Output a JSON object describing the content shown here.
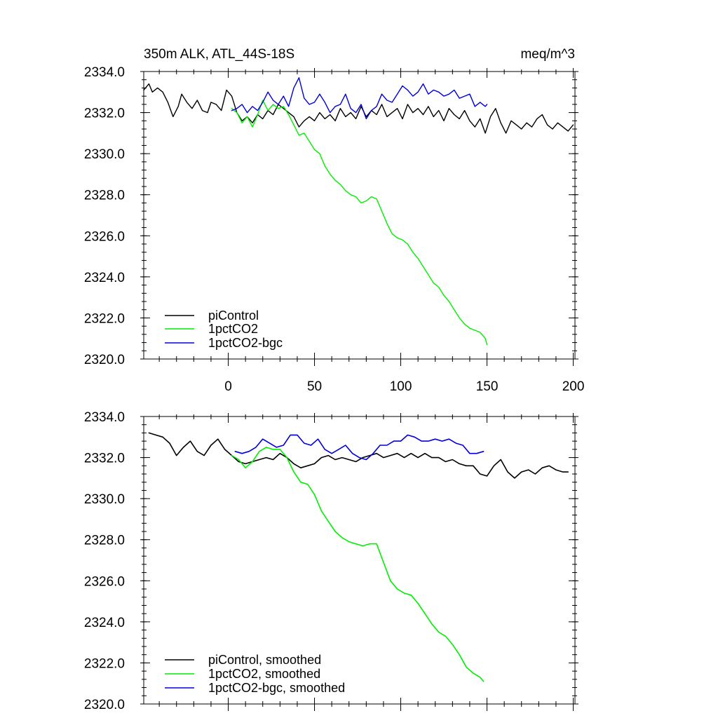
{
  "chart_data": [
    {
      "type": "line",
      "title_left": "350m ALK, ATL_44S-18S",
      "title_right": "meq/m^3",
      "xlabel": "",
      "ylabel": "",
      "xlim": [
        -49,
        201
      ],
      "ylim": [
        2320,
        2334
      ],
      "x_ticks": [
        0,
        50,
        100,
        150,
        200
      ],
      "x_tick_labels": [
        "0",
        "50",
        "100",
        "150",
        "200"
      ],
      "y_ticks": [
        2320,
        2322,
        2324,
        2326,
        2328,
        2330,
        2332,
        2334
      ],
      "y_tick_labels": [
        "2320.0",
        "2322.0",
        "2324.0",
        "2326.0",
        "2328.0",
        "2330.0",
        "2332.0",
        "2334.0"
      ],
      "grid": false,
      "legend_placement": "bottom-left",
      "series": [
        {
          "name": "piControl",
          "color": "#000000",
          "x": [
            -49,
            -46,
            -44,
            -41,
            -38,
            -35,
            -32,
            -29,
            -27,
            -24,
            -21,
            -18,
            -15,
            -12,
            -10,
            -7,
            -4,
            -1,
            2,
            5,
            8,
            11,
            14,
            17,
            20,
            23,
            26,
            29,
            32,
            35,
            38,
            41,
            44,
            47,
            50,
            53,
            56,
            59,
            62,
            65,
            68,
            71,
            74,
            77,
            80,
            83,
            86,
            89,
            92,
            95,
            98,
            101,
            104,
            107,
            110,
            113,
            116,
            119,
            122,
            125,
            128,
            131,
            134,
            137,
            140,
            143,
            146,
            149,
            152,
            155,
            158,
            161,
            164,
            167,
            170,
            173,
            176,
            179,
            182,
            185,
            188,
            191,
            194,
            197,
            200
          ],
          "y": [
            2333.1,
            2333.4,
            2333.0,
            2333.2,
            2333.0,
            2332.5,
            2331.8,
            2332.3,
            2332.9,
            2332.5,
            2332.2,
            2332.6,
            2332.1,
            2332.0,
            2332.5,
            2332.4,
            2332.1,
            2333.1,
            2332.8,
            2332.0,
            2331.6,
            2331.8,
            2331.5,
            2331.9,
            2331.7,
            2332.1,
            2331.9,
            2332.4,
            2332.2,
            2332.0,
            2331.8,
            2331.3,
            2331.6,
            2331.8,
            2331.6,
            2332.0,
            2331.7,
            2331.9,
            2331.6,
            2332.2,
            2331.8,
            2332.0,
            2331.7,
            2332.3,
            2331.8,
            2332.1,
            2331.9,
            2332.4,
            2331.8,
            2332.0,
            2332.2,
            2331.7,
            2332.4,
            2332.0,
            2332.2,
            2331.9,
            2332.3,
            2331.8,
            2332.1,
            2331.6,
            2332.2,
            2331.9,
            2331.7,
            2332.1,
            2331.6,
            2331.3,
            2331.7,
            2331.0,
            2331.8,
            2332.2,
            2331.5,
            2331.0,
            2331.6,
            2331.4,
            2331.2,
            2331.5,
            2331.3,
            2331.7,
            2331.9,
            2331.4,
            2331.2,
            2331.5,
            2331.3,
            2331.1,
            2331.4
          ]
        },
        {
          "name": "1pctCO2",
          "color": "#00ee00",
          "x": [
            2,
            5,
            8,
            11,
            14,
            17,
            20,
            23,
            26,
            29,
            32,
            35,
            38,
            41,
            44,
            47,
            50,
            53,
            56,
            59,
            62,
            65,
            68,
            71,
            74,
            77,
            80,
            83,
            86,
            89,
            92,
            95,
            98,
            101,
            104,
            107,
            110,
            113,
            116,
            119,
            122,
            125,
            128,
            131,
            134,
            137,
            140,
            143,
            146,
            149,
            150
          ],
          "y": [
            2332.2,
            2332.0,
            2331.5,
            2331.8,
            2331.3,
            2331.9,
            2332.6,
            2332.1,
            2332.4,
            2332.2,
            2332.3,
            2331.9,
            2331.4,
            2330.9,
            2331.0,
            2330.6,
            2330.2,
            2330.0,
            2329.4,
            2329.0,
            2328.7,
            2328.5,
            2328.2,
            2328.0,
            2327.9,
            2327.6,
            2327.7,
            2327.9,
            2327.8,
            2327.2,
            2326.6,
            2326.1,
            2325.9,
            2325.8,
            2325.6,
            2325.2,
            2324.9,
            2324.5,
            2324.1,
            2323.7,
            2323.5,
            2323.1,
            2322.8,
            2322.4,
            2322.0,
            2321.7,
            2321.5,
            2321.4,
            2321.3,
            2321.0,
            2320.7
          ]
        },
        {
          "name": "1pctCO2-bgc",
          "color": "#0000dd",
          "x": [
            2,
            5,
            8,
            11,
            14,
            17,
            20,
            23,
            26,
            29,
            32,
            35,
            38,
            41,
            44,
            47,
            50,
            53,
            56,
            59,
            62,
            65,
            68,
            71,
            74,
            77,
            80,
            83,
            86,
            89,
            92,
            95,
            98,
            101,
            104,
            107,
            110,
            113,
            116,
            119,
            122,
            125,
            128,
            131,
            134,
            137,
            140,
            143,
            146,
            149,
            150
          ],
          "y": [
            2332.1,
            2332.2,
            2332.4,
            2332.0,
            2332.3,
            2332.1,
            2332.5,
            2333.0,
            2332.6,
            2332.4,
            2332.8,
            2332.3,
            2333.2,
            2333.7,
            2332.7,
            2332.4,
            2332.5,
            2332.9,
            2332.5,
            2332.0,
            2332.3,
            2332.4,
            2332.9,
            2332.2,
            2332.0,
            2332.4,
            2331.7,
            2332.1,
            2332.3,
            2332.9,
            2332.6,
            2332.5,
            2332.9,
            2333.3,
            2333.1,
            2332.8,
            2333.0,
            2333.4,
            2332.9,
            2333.1,
            2333.0,
            2332.8,
            2332.9,
            2333.1,
            2332.7,
            2332.8,
            2332.9,
            2332.3,
            2332.5,
            2332.3,
            2332.4
          ]
        }
      ]
    },
    {
      "type": "line",
      "xlabel": "",
      "ylabel": "",
      "xlim": [
        -49,
        201
      ],
      "ylim": [
        2320,
        2334
      ],
      "x_ticks": [
        0,
        50,
        100,
        150,
        200
      ],
      "y_ticks": [
        2320,
        2322,
        2324,
        2326,
        2328,
        2330,
        2332,
        2334
      ],
      "y_tick_labels": [
        "2320.0",
        "2322.0",
        "2324.0",
        "2326.0",
        "2328.0",
        "2330.0",
        "2332.0",
        "2334.0"
      ],
      "grid": false,
      "legend_placement": "bottom-left",
      "series": [
        {
          "name": "piControl, smoothed",
          "color": "#000000",
          "x": [
            -46,
            -42,
            -38,
            -34,
            -30,
            -26,
            -22,
            -18,
            -14,
            -10,
            -6,
            -2,
            2,
            6,
            10,
            14,
            18,
            22,
            26,
            30,
            34,
            38,
            42,
            46,
            50,
            54,
            58,
            62,
            66,
            70,
            74,
            78,
            82,
            86,
            90,
            94,
            98,
            102,
            106,
            110,
            114,
            118,
            122,
            126,
            130,
            134,
            138,
            142,
            146,
            150,
            154,
            158,
            162,
            166,
            170,
            174,
            178,
            182,
            186,
            190,
            194,
            197
          ],
          "y": [
            2333.2,
            2333.1,
            2333.0,
            2332.7,
            2332.1,
            2332.5,
            2332.8,
            2332.3,
            2332.1,
            2332.6,
            2332.9,
            2332.4,
            2332.1,
            2331.8,
            2331.7,
            2331.8,
            2331.9,
            2332.0,
            2331.9,
            2332.2,
            2332.0,
            2331.7,
            2331.5,
            2331.6,
            2331.7,
            2332.0,
            2332.1,
            2331.9,
            2332.0,
            2331.9,
            2331.8,
            2332.0,
            2332.1,
            2332.2,
            2332.0,
            2332.1,
            2332.2,
            2332.0,
            2332.2,
            2332.0,
            2332.2,
            2332.0,
            2332.0,
            2331.8,
            2331.9,
            2331.7,
            2331.6,
            2331.6,
            2331.2,
            2331.1,
            2331.6,
            2331.9,
            2331.3,
            2331.0,
            2331.3,
            2331.4,
            2331.2,
            2331.5,
            2331.6,
            2331.4,
            2331.3,
            2331.3
          ]
        },
        {
          "name": "1pctCO2, smoothed",
          "color": "#00ee00",
          "x": [
            2,
            6,
            10,
            14,
            18,
            22,
            26,
            30,
            34,
            38,
            42,
            46,
            50,
            54,
            58,
            62,
            66,
            70,
            74,
            78,
            82,
            86,
            90,
            94,
            98,
            102,
            106,
            110,
            114,
            118,
            122,
            126,
            130,
            134,
            138,
            142,
            146,
            148
          ],
          "y": [
            2332.1,
            2331.9,
            2331.5,
            2331.8,
            2332.3,
            2332.5,
            2332.4,
            2332.4,
            2332.0,
            2331.3,
            2330.8,
            2330.7,
            2330.2,
            2329.4,
            2328.9,
            2328.4,
            2328.1,
            2327.9,
            2327.8,
            2327.7,
            2327.8,
            2327.8,
            2326.9,
            2326.0,
            2325.6,
            2325.4,
            2325.3,
            2324.9,
            2324.4,
            2323.9,
            2323.5,
            2323.3,
            2322.9,
            2322.4,
            2321.8,
            2321.5,
            2321.3,
            2321.1
          ]
        },
        {
          "name": "1pctCO2-bgc, smoothed",
          "color": "#0000dd",
          "x": [
            4,
            8,
            12,
            16,
            20,
            24,
            28,
            32,
            36,
            40,
            44,
            48,
            52,
            56,
            60,
            64,
            68,
            72,
            76,
            80,
            84,
            88,
            92,
            96,
            100,
            104,
            108,
            112,
            116,
            120,
            124,
            128,
            132,
            136,
            140,
            144,
            148
          ],
          "y": [
            2332.3,
            2332.2,
            2332.3,
            2332.5,
            2332.9,
            2332.7,
            2332.5,
            2332.6,
            2333.1,
            2333.1,
            2332.7,
            2332.6,
            2332.9,
            2332.4,
            2332.2,
            2332.4,
            2332.6,
            2332.2,
            2332.0,
            2331.9,
            2332.2,
            2332.6,
            2332.6,
            2332.8,
            2332.8,
            2333.1,
            2333.0,
            2332.8,
            2332.8,
            2332.9,
            2332.8,
            2332.9,
            2332.7,
            2332.6,
            2332.2,
            2332.2,
            2332.3
          ]
        }
      ]
    }
  ]
}
